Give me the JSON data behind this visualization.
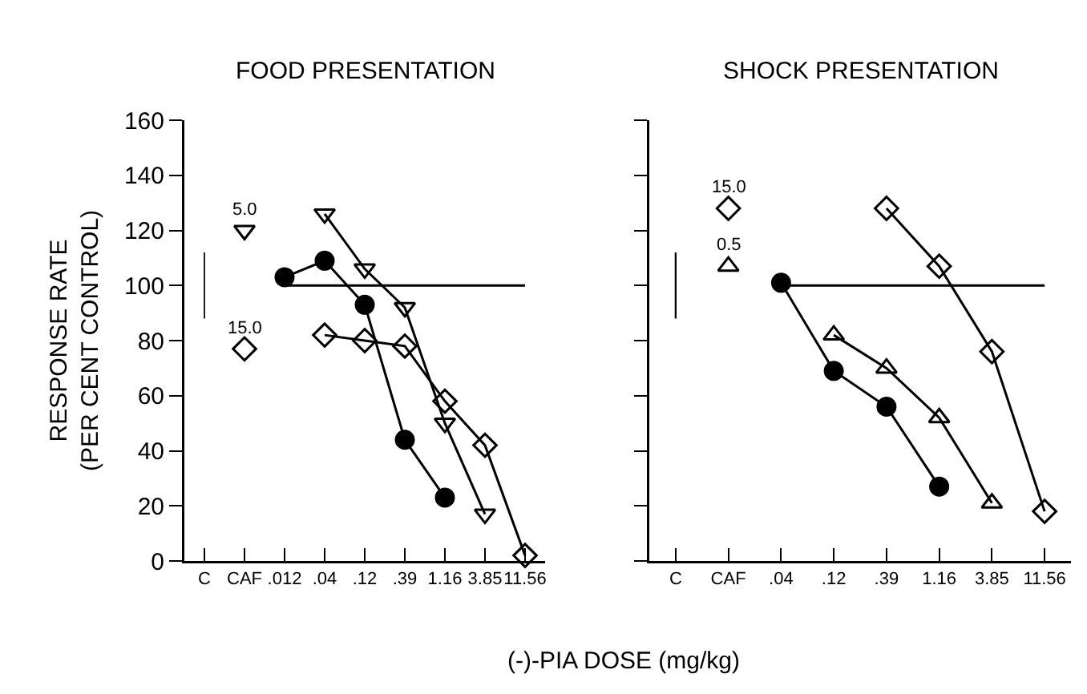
{
  "chart_data": [
    {
      "type": "line",
      "title": "FOOD PRESENTATION",
      "ylabel": "RESPONSE RATE\n(PER CENT CONTROL)",
      "xlabel": "(-)-PIA DOSE (mg/kg)",
      "categories": [
        "C",
        "CAF",
        ".012",
        ".04",
        ".12",
        ".39",
        "1.16",
        "3.85",
        "11.56"
      ],
      "ylim": [
        0,
        160
      ],
      "yticks": [
        0,
        20,
        40,
        60,
        80,
        100,
        120,
        140,
        160
      ],
      "ref_lines": [
        {
          "axis": "y",
          "value": 100
        }
      ],
      "annotations": [
        {
          "text": "5.0",
          "x": "CAF",
          "y": 120
        },
        {
          "text": "15.0",
          "x": "CAF",
          "y": 77
        }
      ],
      "series": [
        {
          "type": "bar",
          "color": "#000000",
          "values": [
            24,
            null,
            null,
            null,
            null,
            null,
            null,
            null,
            null
          ],
          "base": [
            88,
            null,
            null,
            null,
            null,
            null,
            null,
            null,
            null
          ]
        },
        {
          "type": "scatter",
          "marker": "triangle-down",
          "color": "#000000",
          "values": [
            null,
            120,
            null,
            null,
            null,
            null,
            null,
            null,
            null
          ]
        },
        {
          "type": "scatter",
          "marker": "diamond",
          "color": "#000000",
          "values": [
            null,
            77,
            null,
            null,
            null,
            null,
            null,
            null,
            null
          ]
        },
        {
          "marker": "circle",
          "color": "#000000",
          "values": [
            null,
            null,
            103,
            109,
            93,
            44,
            23,
            null,
            null
          ]
        },
        {
          "marker": "triangle-down",
          "color": "#000000",
          "values": [
            null,
            null,
            null,
            126,
            106,
            92,
            50,
            17,
            null
          ]
        },
        {
          "marker": "diamond",
          "color": "#000000",
          "values": [
            null,
            null,
            null,
            82,
            80,
            78,
            58,
            42,
            2
          ]
        }
      ]
    },
    {
      "type": "line",
      "title": "SHOCK PRESENTATION",
      "tick_labels": "x",
      "categories": [
        "C",
        "CAF",
        ".04",
        ".12",
        ".39",
        "1.16",
        "3.85",
        "11.56"
      ],
      "ylim": [
        0,
        160
      ],
      "yticks": [
        0,
        20,
        40,
        60,
        80,
        100,
        120,
        140,
        160
      ],
      "ref_lines": [
        {
          "axis": "y",
          "value": 100
        }
      ],
      "annotations": [
        {
          "text": "15.0",
          "x": "CAF",
          "y": 128
        },
        {
          "text": "0.5",
          "x": "CAF",
          "y": 107
        }
      ],
      "series": [
        {
          "type": "bar",
          "color": "#000000",
          "values": [
            24,
            null,
            null,
            null,
            null,
            null,
            null,
            null
          ],
          "base": [
            88,
            null,
            null,
            null,
            null,
            null,
            null,
            null
          ]
        },
        {
          "type": "scatter",
          "marker": "diamond",
          "color": "#000000",
          "values": [
            null,
            128,
            null,
            null,
            null,
            null,
            null,
            null
          ]
        },
        {
          "type": "scatter",
          "marker": "triangle",
          "color": "#000000",
          "values": [
            null,
            107,
            null,
            null,
            null,
            null,
            null,
            null
          ]
        },
        {
          "marker": "circle",
          "color": "#000000",
          "values": [
            null,
            null,
            101,
            69,
            56,
            27,
            null,
            null
          ]
        },
        {
          "marker": "triangle",
          "color": "#000000",
          "values": [
            null,
            null,
            null,
            82,
            70,
            52,
            21,
            null
          ]
        },
        {
          "marker": "diamond",
          "color": "#000000",
          "values": [
            null,
            null,
            null,
            null,
            128,
            107,
            76,
            18
          ]
        }
      ]
    }
  ]
}
